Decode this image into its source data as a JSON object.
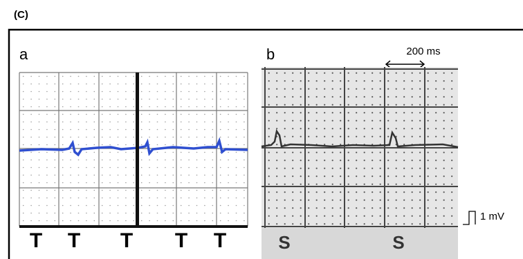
{
  "figure_label": "(C)",
  "panels": [
    {
      "label": "a",
      "markers": [
        "T",
        "T",
        "T",
        "T",
        "T"
      ]
    },
    {
      "label": "b",
      "scale_time": "200 ms",
      "scale_voltage": "1 mV",
      "markers": [
        "S",
        "S"
      ]
    }
  ]
}
